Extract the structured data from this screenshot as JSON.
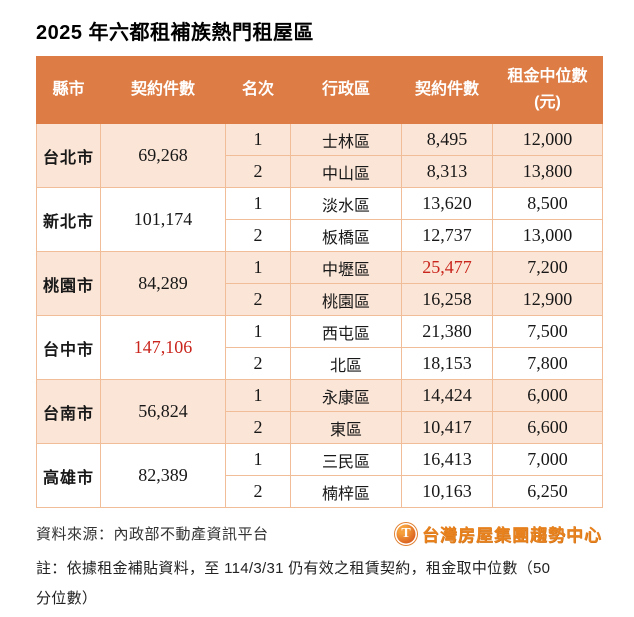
{
  "page": {
    "title": "2025 年六都租補族熱門租屋區"
  },
  "colors": {
    "header_bg": "#dd7c44",
    "band_bg": "#fbe5d6",
    "border": "#f0bd98",
    "highlight_red": "#c9251c",
    "logo_orange": "#e8821e"
  },
  "table": {
    "headers": {
      "city": "縣市",
      "total_contracts": "契約件數",
      "rank": "名次",
      "district": "行政區",
      "contracts": "契約件數",
      "rent_line1": "租金中位數",
      "rent_line2": "(元)"
    },
    "groups": [
      {
        "city": "台北市",
        "total": "69,268",
        "rows": [
          {
            "rank": "1",
            "district": "士林區",
            "contracts": "8,495",
            "rent": "12,000"
          },
          {
            "rank": "2",
            "district": "中山區",
            "contracts": "8,313",
            "rent": "13,800"
          }
        ]
      },
      {
        "city": "新北市",
        "total": "101,174",
        "rows": [
          {
            "rank": "1",
            "district": "淡水區",
            "contracts": "13,620",
            "rent": "8,500"
          },
          {
            "rank": "2",
            "district": "板橋區",
            "contracts": "12,737",
            "rent": "13,000"
          }
        ]
      },
      {
        "city": "桃園市",
        "total": "84,289",
        "rows": [
          {
            "rank": "1",
            "district": "中壢區",
            "contracts": "25,477",
            "rent": "7,200"
          },
          {
            "rank": "2",
            "district": "桃園區",
            "contracts": "16,258",
            "rent": "12,900"
          }
        ]
      },
      {
        "city": "台中市",
        "total": "147,106",
        "rows": [
          {
            "rank": "1",
            "district": "西屯區",
            "contracts": "21,380",
            "rent": "7,500"
          },
          {
            "rank": "2",
            "district": "北區",
            "contracts": "18,153",
            "rent": "7,800"
          }
        ]
      },
      {
        "city": "台南市",
        "total": "56,824",
        "rows": [
          {
            "rank": "1",
            "district": "永康區",
            "contracts": "14,424",
            "rent": "6,000"
          },
          {
            "rank": "2",
            "district": "東區",
            "contracts": "10,417",
            "rent": "6,600"
          }
        ]
      },
      {
        "city": "高雄市",
        "total": "82,389",
        "rows": [
          {
            "rank": "1",
            "district": "三民區",
            "contracts": "16,413",
            "rent": "7,000"
          },
          {
            "rank": "2",
            "district": "楠梓區",
            "contracts": "10,163",
            "rent": "6,250"
          }
        ]
      }
    ]
  },
  "footer": {
    "source": "資料來源：內政部不動產資訊平台",
    "logo_icon_letter": "T",
    "logo_text": "台灣房屋集團趨勢中心",
    "note_line1": "註：依據租金補貼資料，至 114/3/31 仍有效之租賃契約，租金取中位數（50",
    "note_line2": "分位數）"
  }
}
